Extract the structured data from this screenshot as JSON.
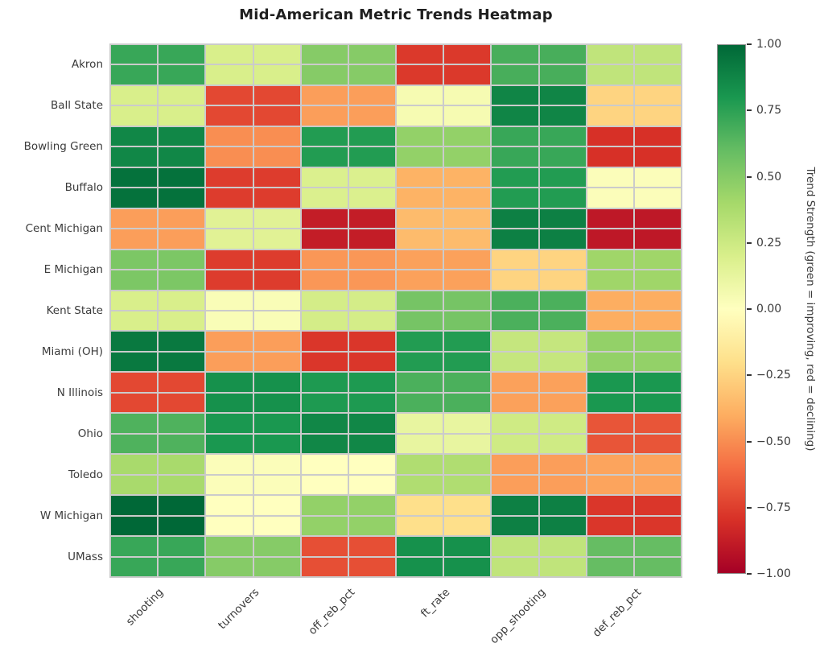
{
  "figure": {
    "title": "Mid-American Metric Trends Heatmap"
  },
  "chart_data": {
    "type": "heatmap",
    "title": "Mid-American Metric Trends Heatmap",
    "rows": [
      "Akron",
      "Ball State",
      "Bowling Green",
      "Buffalo",
      "Cent Michigan",
      "E Michigan",
      "Kent State",
      "Miami (OH)",
      "N Illinois",
      "Ohio",
      "Toledo",
      "W Michigan",
      "UMass"
    ],
    "columns": [
      "shooting",
      "turnovers",
      "off_reb_pct",
      "ft_rate",
      "opp_shooting",
      "def_reb_pct"
    ],
    "values": [
      [
        0.72,
        0.2,
        0.5,
        -0.77,
        0.68,
        0.3
      ],
      [
        0.2,
        -0.72,
        -0.45,
        0.05,
        0.88,
        -0.25
      ],
      [
        0.87,
        -0.5,
        0.78,
        0.46,
        0.72,
        -0.8
      ],
      [
        0.96,
        -0.76,
        0.19,
        -0.38,
        0.78,
        0.02
      ],
      [
        -0.45,
        0.16,
        -0.88,
        -0.35,
        0.9,
        -0.9
      ],
      [
        0.53,
        -0.76,
        -0.47,
        -0.44,
        -0.25,
        0.42
      ],
      [
        0.2,
        0.03,
        0.22,
        0.55,
        0.67,
        -0.4
      ],
      [
        0.93,
        -0.45,
        -0.78,
        0.78,
        0.28,
        0.46
      ],
      [
        -0.72,
        0.83,
        0.79,
        0.67,
        -0.44,
        0.8
      ],
      [
        0.66,
        0.8,
        0.87,
        0.12,
        0.24,
        -0.68
      ],
      [
        0.39,
        0.02,
        0.0,
        0.36,
        -0.45,
        -0.43
      ],
      [
        1.0,
        0.0,
        0.46,
        -0.2,
        0.9,
        -0.78
      ],
      [
        0.72,
        0.5,
        -0.7,
        0.83,
        0.3,
        0.6
      ]
    ],
    "vmin": -1,
    "vmax": 1,
    "colormap": "RdYlGn",
    "colormap_anchors": [
      "#a50026",
      "#d73027",
      "#f46d43",
      "#fdae61",
      "#fee08b",
      "#ffffbf",
      "#d9ef8b",
      "#a6d96a",
      "#66bd63",
      "#1a9850",
      "#006837"
    ],
    "gridline_color": "#cbcbcb",
    "grid_on": true,
    "legend_position": "right-colorbar",
    "colorbar": {
      "label": "Trend Strength (green = improving, red = declining)",
      "ticks": [
        "1.00",
        "0.75",
        "0.50",
        "0.25",
        "0.00",
        "−0.25",
        "−0.50",
        "−0.75",
        "−1.00"
      ],
      "tick_values": [
        1,
        0.75,
        0.5,
        0.25,
        0,
        -0.25,
        -0.5,
        -0.75,
        -1
      ]
    }
  }
}
